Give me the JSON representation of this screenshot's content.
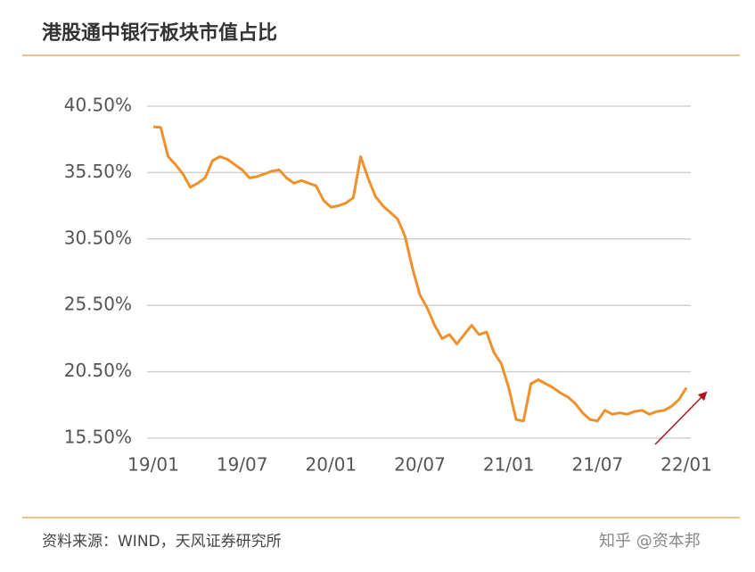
{
  "chart_data": {
    "type": "line",
    "title": "港股通中银行板块市值占比",
    "x": [
      "19/01",
      null,
      null,
      null,
      null,
      null,
      null,
      null,
      null,
      null,
      null,
      null,
      "19/07",
      null,
      null,
      null,
      null,
      null,
      null,
      null,
      null,
      null,
      null,
      null,
      "20/01",
      null,
      null,
      null,
      null,
      null,
      null,
      null,
      null,
      null,
      null,
      null,
      "20/07",
      null,
      null,
      null,
      null,
      null,
      null,
      null,
      null,
      null,
      null,
      null,
      "21/01",
      null,
      null,
      null,
      null,
      null,
      null,
      null,
      null,
      null,
      null,
      null,
      "21/07",
      null,
      null,
      null,
      null,
      null,
      null,
      null,
      null,
      null,
      null,
      null,
      "22/01"
    ],
    "values": [
      38.95,
      38.9,
      36.7,
      36.1,
      35.4,
      34.4,
      34.7,
      35.1,
      36.4,
      36.7,
      36.5,
      36.1,
      35.7,
      35.1,
      35.2,
      35.4,
      35.6,
      35.7,
      35.1,
      34.7,
      34.9,
      34.7,
      34.5,
      33.4,
      32.9,
      33.0,
      33.2,
      33.6,
      36.7,
      35.1,
      33.7,
      33.0,
      32.5,
      32.0,
      30.7,
      28.3,
      26.3,
      25.3,
      24.0,
      23.0,
      23.3,
      22.6,
      23.3,
      24.0,
      23.3,
      23.5,
      21.95,
      21.1,
      19.3,
      16.9,
      16.8,
      19.6,
      19.9,
      19.6,
      19.3,
      18.9,
      18.6,
      18.1,
      17.4,
      16.9,
      16.8,
      17.6,
      17.3,
      17.4,
      17.3,
      17.5,
      17.6,
      17.3,
      17.5,
      17.6,
      17.9,
      18.4,
      19.3
    ],
    "color": "#f0902a",
    "ylim": [
      15.5,
      40.5
    ],
    "yticks": [
      {
        "value": 15.5,
        "label": "15.50%"
      },
      {
        "value": 20.5,
        "label": "20.50%"
      },
      {
        "value": 25.5,
        "label": "25.50%"
      },
      {
        "value": 30.5,
        "label": "30.50%"
      },
      {
        "value": 35.5,
        "label": "35.50%"
      },
      {
        "value": 40.5,
        "label": "40.50%"
      }
    ],
    "grid": true
  },
  "footer": {
    "source": "资料来源：WIND，天风证券研究所",
    "watermark": "知乎 @资本邦"
  }
}
